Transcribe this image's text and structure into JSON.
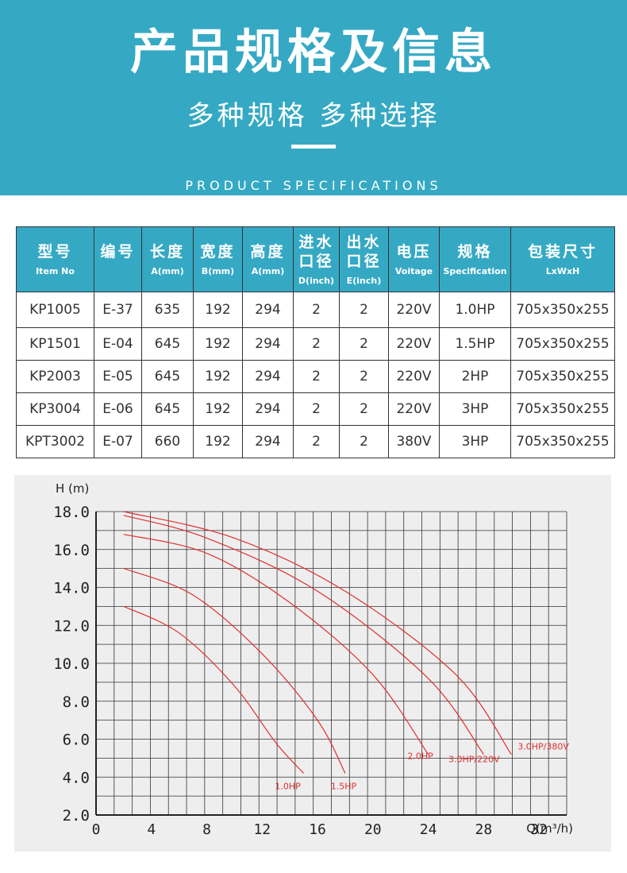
{
  "header": {
    "title": "产品规格及信息",
    "subtitle": "多种规格  多种选择",
    "english": "PRODUCT SPECIFICATIONS"
  },
  "colors": {
    "accent": "#35a9c4",
    "curve": "#e03030",
    "grid": "#333333"
  },
  "table": {
    "columns": [
      {
        "cn": "型号",
        "en": "Item No"
      },
      {
        "cn": "编号",
        "en": ""
      },
      {
        "cn": "长度",
        "en": "A(mm)"
      },
      {
        "cn": "宽度",
        "en": "B(mm)"
      },
      {
        "cn": "高度",
        "en": "A(mm)"
      },
      {
        "cn": "进水\n口径",
        "en": "D(inch)"
      },
      {
        "cn": "出水\n口径",
        "en": "E(inch)"
      },
      {
        "cn": "电压",
        "en": "Voitage"
      },
      {
        "cn": "规格",
        "en": "Specification"
      },
      {
        "cn": "包装尺寸",
        "en": "LxWxH"
      }
    ],
    "rows": [
      [
        "KP1005",
        "E-37",
        "635",
        "192",
        "294",
        "2",
        "2",
        "220V",
        "1.0HP",
        "705x350x255"
      ],
      [
        "KP1501",
        "E-04",
        "645",
        "192",
        "294",
        "2",
        "2",
        "220V",
        "1.5HP",
        "705x350x255"
      ],
      [
        "KP2003",
        "E-05",
        "645",
        "192",
        "294",
        "2",
        "2",
        "220V",
        "2HP",
        "705x350x255"
      ],
      [
        "KP3004",
        "E-06",
        "645",
        "192",
        "294",
        "2",
        "2",
        "220V",
        "3HP",
        "705x350x255"
      ],
      [
        "KPT3002",
        "E-07",
        "660",
        "192",
        "294",
        "2",
        "2",
        "380V",
        "3HP",
        "705x350x255"
      ]
    ]
  },
  "chart_data": {
    "type": "line",
    "title": "",
    "xlabel": "Q(m³/h)",
    "ylabel": "H (m)",
    "xlim": [
      0,
      34
    ],
    "ylim": [
      2,
      18
    ],
    "x_ticks": [
      "0",
      "4",
      "8",
      "12",
      "16",
      "20",
      "24",
      "28",
      "32"
    ],
    "y_ticks": [
      "18.0",
      "16.0",
      "14.0",
      "12.0",
      "10.0",
      "8.0",
      "6.0",
      "4.0",
      "2.0"
    ],
    "grid": true,
    "series": [
      {
        "name": "1.0HP",
        "x": [
          2,
          6,
          10,
          13,
          15
        ],
        "y": [
          13,
          11.6,
          8.8,
          5.8,
          4.2
        ]
      },
      {
        "name": "1.5HP",
        "x": [
          2,
          7,
          12,
          16,
          18
        ],
        "y": [
          15,
          13.6,
          10.5,
          7,
          4.2
        ]
      },
      {
        "name": "2.0HP",
        "x": [
          2,
          8,
          14,
          20,
          24
        ],
        "y": [
          16.8,
          15.8,
          13.2,
          9.4,
          5.2
        ]
      },
      {
        "name": "3.0HP/220V",
        "x": [
          2,
          8,
          16,
          24,
          28
        ],
        "y": [
          17.8,
          16.6,
          13.8,
          9.2,
          5.2
        ]
      },
      {
        "name": "3.0HP/380V",
        "x": [
          2,
          10,
          18,
          26,
          30
        ],
        "y": [
          18,
          16.6,
          13.8,
          9.4,
          5.2
        ]
      }
    ]
  }
}
